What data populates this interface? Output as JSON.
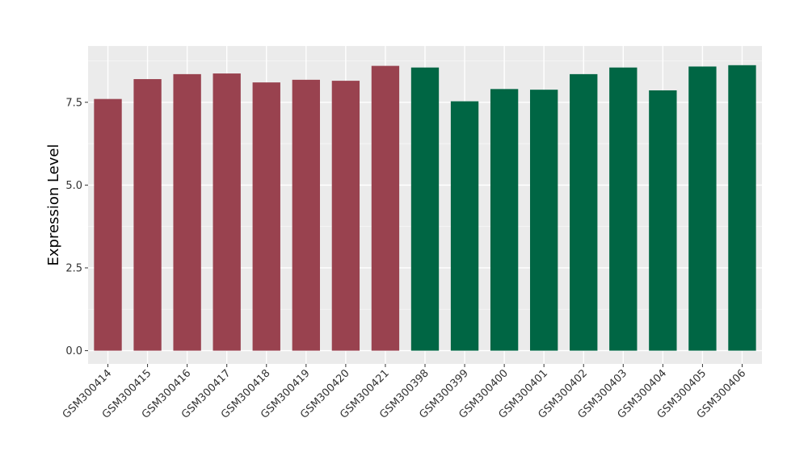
{
  "chart_data": {
    "type": "bar",
    "ylabel": "Expression Level",
    "xlabel": "",
    "ylim": [
      -0.4,
      9.2
    ],
    "yticks": [
      0.0,
      2.5,
      5.0,
      7.5
    ],
    "ytick_labels": [
      "0.0",
      "2.5",
      "5.0",
      "7.5"
    ],
    "grid": true,
    "panel_color": "#ebebeb",
    "categories": [
      "GSM300414",
      "GSM300415",
      "GSM300416",
      "GSM300417",
      "GSM300418",
      "GSM300419",
      "GSM300420",
      "GSM300421",
      "GSM300398",
      "GSM300399",
      "GSM300400",
      "GSM300401",
      "GSM300402",
      "GSM300403",
      "GSM300404",
      "GSM300405",
      "GSM300406"
    ],
    "values": [
      7.6,
      8.2,
      8.35,
      8.37,
      8.1,
      8.18,
      8.15,
      8.6,
      8.55,
      7.53,
      7.9,
      7.88,
      8.35,
      8.55,
      7.86,
      8.58,
      8.62
    ],
    "colors": [
      "#99424f",
      "#99424f",
      "#99424f",
      "#99424f",
      "#99424f",
      "#99424f",
      "#99424f",
      "#99424f",
      "#006644",
      "#006644",
      "#006644",
      "#006644",
      "#006644",
      "#006644",
      "#006644",
      "#006644",
      "#006644"
    ]
  }
}
